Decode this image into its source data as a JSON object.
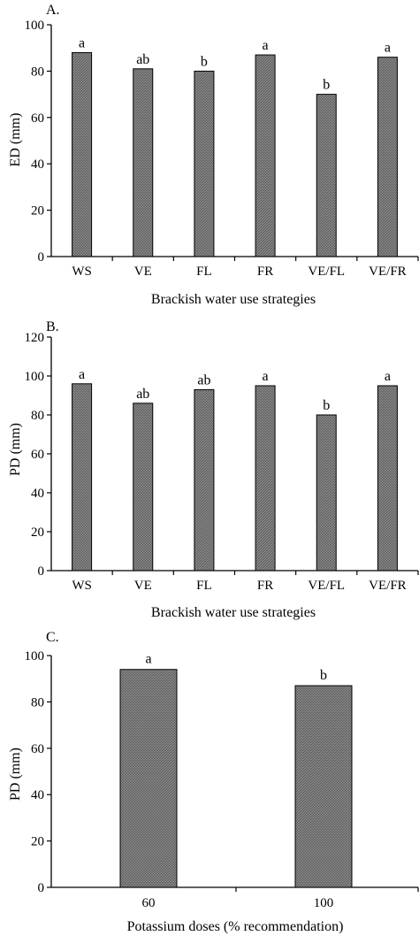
{
  "colors": {
    "bar_fill": "#8a8a8a",
    "bar_hatch": "#5a5a5a",
    "axis": "#000000"
  },
  "chart_data": [
    {
      "type": "bar",
      "panel_label": "A.",
      "ylabel": "ED (mm)",
      "xlabel": "Brackish water use strategies",
      "categories": [
        "WS",
        "VE",
        "FL",
        "FR",
        "VE/FL",
        "VE/FR"
      ],
      "values": [
        88,
        81,
        80,
        87,
        70,
        86
      ],
      "data_labels": [
        "a",
        "ab",
        "b",
        "a",
        "b",
        "a"
      ],
      "ylim": [
        0,
        100
      ],
      "yticks": [
        0,
        20,
        40,
        60,
        80,
        100
      ],
      "grid": false,
      "legend": "none"
    },
    {
      "type": "bar",
      "panel_label": "B.",
      "ylabel": "PD (mm)",
      "xlabel": "Brackish water use strategies",
      "categories": [
        "WS",
        "VE",
        "FL",
        "FR",
        "VE/FL",
        "VE/FR"
      ],
      "values": [
        96,
        86,
        93,
        95,
        80,
        95
      ],
      "data_labels": [
        "a",
        "ab",
        "ab",
        "a",
        "b",
        "a"
      ],
      "ylim": [
        0,
        120
      ],
      "yticks": [
        0,
        20,
        40,
        60,
        80,
        100,
        120
      ],
      "grid": false,
      "legend": "none"
    },
    {
      "type": "bar",
      "panel_label": "C.",
      "ylabel": "PD (mm)",
      "xlabel": "Potassium doses (% recommendation)",
      "categories": [
        "60",
        "100"
      ],
      "values": [
        94,
        87
      ],
      "data_labels": [
        "a",
        "b"
      ],
      "ylim": [
        0,
        100
      ],
      "yticks": [
        0,
        20,
        40,
        60,
        80,
        100
      ],
      "grid": false,
      "legend": "none"
    }
  ]
}
